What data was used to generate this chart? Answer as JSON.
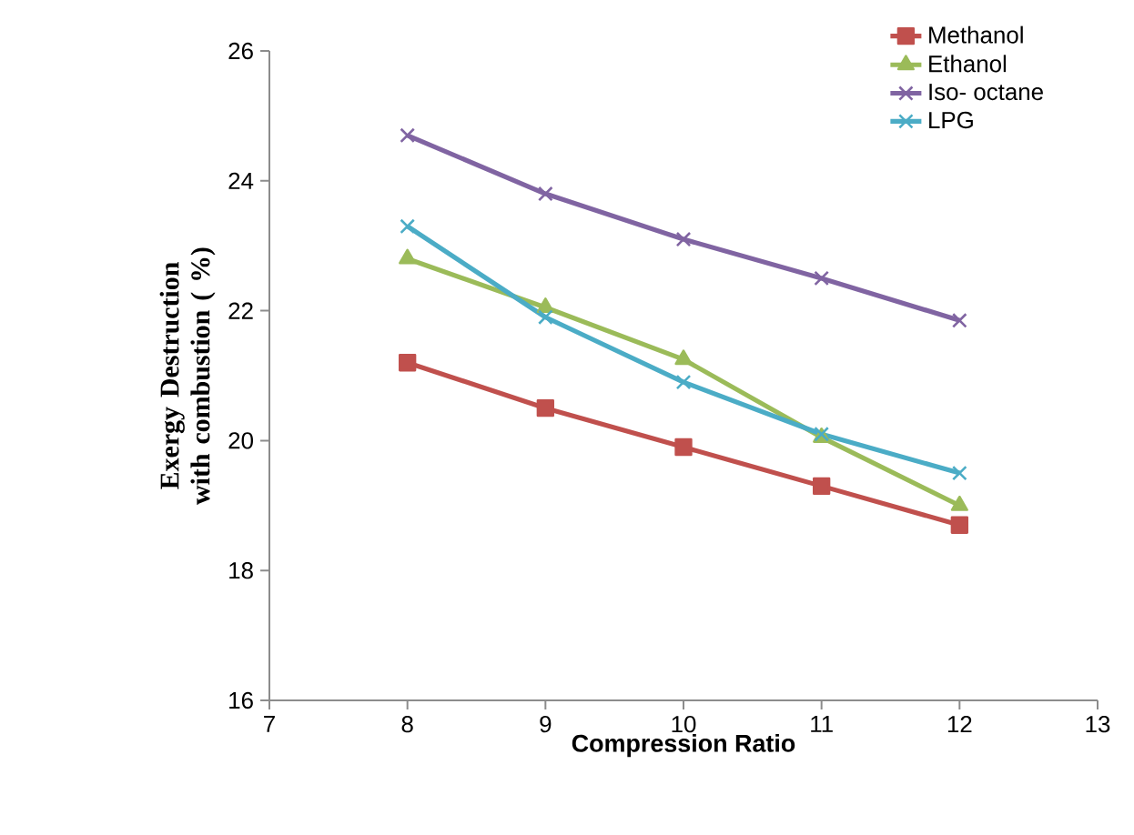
{
  "chart_data": {
    "type": "line",
    "xlabel": "Compression Ratio",
    "ylabel": "Exergy Destruction with combustion ( %)",
    "x": [
      8,
      9,
      10,
      11,
      12
    ],
    "series": [
      {
        "name": "Methanol",
        "color": "#c0504d",
        "marker": "square",
        "values": [
          21.2,
          20.5,
          19.9,
          19.3,
          18.7
        ]
      },
      {
        "name": "Ethanol",
        "color": "#9bbb59",
        "marker": "triangle",
        "values": [
          22.8,
          22.05,
          21.25,
          20.05,
          19.0
        ]
      },
      {
        "name": "Iso- octane",
        "color": "#8064a2",
        "marker": "cross",
        "values": [
          24.7,
          23.8,
          23.1,
          22.5,
          21.85
        ]
      },
      {
        "name": "LPG",
        "color": "#4bacc6",
        "marker": "cross",
        "values": [
          23.3,
          21.9,
          20.9,
          20.1,
          19.5
        ]
      }
    ],
    "xlim": [
      7,
      13
    ],
    "xticks": [
      7,
      8,
      9,
      10,
      11,
      12,
      13
    ],
    "ylim": [
      16,
      26
    ],
    "yticks": [
      16,
      18,
      20,
      22,
      24,
      26
    ],
    "grid": false,
    "legend": "top right"
  }
}
